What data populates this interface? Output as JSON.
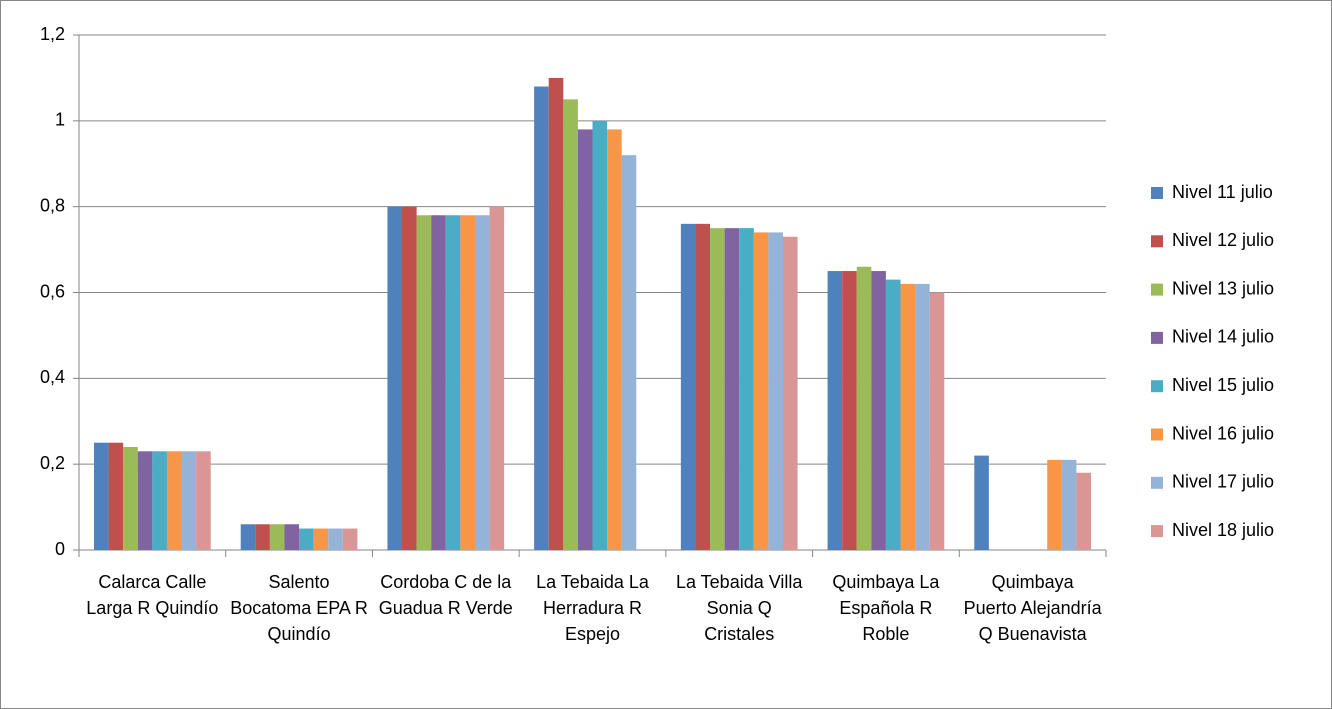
{
  "chart_data": {
    "type": "bar",
    "categories": [
      "Calarca Calle Larga R Quindío",
      "Salento Bocatoma EPA R Quindío",
      "Cordoba C de la Guadua R Verde",
      "La Tebaida La Herradura R Espejo",
      "La Tebaida Villa Sonia Q Cristales",
      "Quimbaya La Española R Roble",
      "Quimbaya Puerto Alejandría Q Buenavista"
    ],
    "series": [
      {
        "name": "Nivel 11 julio",
        "color": "#4f81bd",
        "values": [
          0.25,
          0.06,
          0.8,
          1.08,
          0.76,
          0.65,
          0.22
        ]
      },
      {
        "name": "Nivel 12 julio",
        "color": "#c0504d",
        "values": [
          0.25,
          0.06,
          0.8,
          1.1,
          0.76,
          0.65,
          null
        ]
      },
      {
        "name": "Nivel 13 julio",
        "color": "#9bbb59",
        "values": [
          0.24,
          0.06,
          0.78,
          1.05,
          0.75,
          0.66,
          null
        ]
      },
      {
        "name": "Nivel 14 julio",
        "color": "#8064a2",
        "values": [
          0.23,
          0.06,
          0.78,
          0.98,
          0.75,
          0.65,
          null
        ]
      },
      {
        "name": "Nivel 15 julio",
        "color": "#4bacc6",
        "values": [
          0.23,
          0.05,
          0.78,
          1.0,
          0.75,
          0.63,
          null
        ]
      },
      {
        "name": "Nivel 16 julio",
        "color": "#f79646",
        "values": [
          0.23,
          0.05,
          0.78,
          0.98,
          0.74,
          0.62,
          0.21
        ]
      },
      {
        "name": "Nivel 17 julio",
        "color": "#95b3d7",
        "values": [
          0.23,
          0.05,
          0.78,
          0.92,
          0.74,
          0.62,
          0.21
        ]
      },
      {
        "name": "Nivel 18 julio",
        "color": "#d99694",
        "values": [
          0.23,
          0.05,
          0.8,
          null,
          0.73,
          0.6,
          0.18
        ]
      }
    ],
    "ylim": [
      0,
      1.2
    ],
    "yticks": [
      0,
      {
        "value": 0.2,
        "label": "0,2"
      },
      {
        "value": 0.4,
        "label": "0,4"
      },
      {
        "value": 0.6,
        "label": "0,6"
      },
      {
        "value": 0.8,
        "label": "0,8"
      },
      1,
      {
        "value": 1.2,
        "label": "1,2"
      }
    ],
    "grid": true,
    "legend": "right"
  }
}
